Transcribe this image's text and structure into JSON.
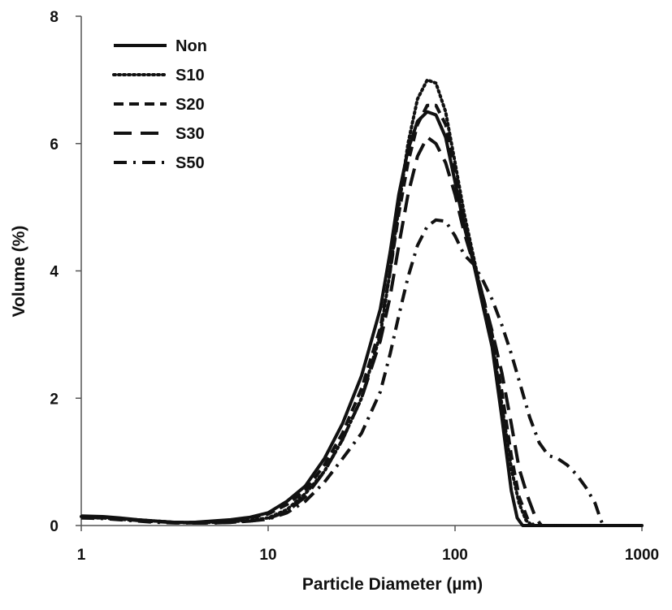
{
  "chart_data": {
    "type": "line",
    "xlabel": "Particle Diameter (µm)",
    "ylabel": "Volume (%)",
    "xscale": "log",
    "xlim": [
      1,
      1000
    ],
    "ylim": [
      0,
      8
    ],
    "x_ticks": [
      1,
      10,
      100,
      1000
    ],
    "x_tick_labels": [
      "1",
      "10",
      "100",
      "1000"
    ],
    "y_ticks": [
      0,
      2,
      4,
      6,
      8
    ],
    "y_tick_labels": [
      "0",
      "2",
      "4",
      "6",
      "8"
    ],
    "grid": false,
    "legend_position": "top-left",
    "series": [
      {
        "name": "Non",
        "style": "solid",
        "points": [
          [
            1,
            0.15
          ],
          [
            1.3,
            0.14
          ],
          [
            1.6,
            0.12
          ],
          [
            2,
            0.09
          ],
          [
            2.5,
            0.07
          ],
          [
            3.2,
            0.05
          ],
          [
            4,
            0.05
          ],
          [
            5,
            0.07
          ],
          [
            6.3,
            0.09
          ],
          [
            8,
            0.13
          ],
          [
            10,
            0.2
          ],
          [
            12.6,
            0.38
          ],
          [
            15.8,
            0.62
          ],
          [
            20,
            1.05
          ],
          [
            25,
            1.6
          ],
          [
            31.6,
            2.35
          ],
          [
            39.8,
            3.4
          ],
          [
            45,
            4.3
          ],
          [
            50,
            5.2
          ],
          [
            56,
            5.9
          ],
          [
            63,
            6.35
          ],
          [
            71,
            6.5
          ],
          [
            79,
            6.45
          ],
          [
            89,
            6.1
          ],
          [
            100,
            5.4
          ],
          [
            112,
            4.7
          ],
          [
            126,
            4.1
          ],
          [
            141,
            3.45
          ],
          [
            158,
            2.8
          ],
          [
            178,
            1.7
          ],
          [
            200,
            0.55
          ],
          [
            215,
            0.12
          ],
          [
            230,
            0.0
          ],
          [
            1000,
            0.0
          ]
        ]
      },
      {
        "name": "S10",
        "style": "dotted",
        "points": [
          [
            1,
            0.14
          ],
          [
            1.3,
            0.13
          ],
          [
            1.6,
            0.11
          ],
          [
            2,
            0.09
          ],
          [
            2.5,
            0.07
          ],
          [
            3.2,
            0.05
          ],
          [
            4,
            0.04
          ],
          [
            5,
            0.05
          ],
          [
            6.3,
            0.06
          ],
          [
            8,
            0.08
          ],
          [
            10,
            0.12
          ],
          [
            12.6,
            0.25
          ],
          [
            15.8,
            0.5
          ],
          [
            20,
            0.85
          ],
          [
            25,
            1.35
          ],
          [
            31.6,
            2.0
          ],
          [
            39.8,
            3.0
          ],
          [
            45,
            4.0
          ],
          [
            50,
            5.0
          ],
          [
            56,
            6.0
          ],
          [
            63,
            6.7
          ],
          [
            71,
            7.0
          ],
          [
            79,
            6.95
          ],
          [
            89,
            6.5
          ],
          [
            100,
            5.7
          ],
          [
            112,
            4.9
          ],
          [
            126,
            4.2
          ],
          [
            141,
            3.55
          ],
          [
            158,
            2.9
          ],
          [
            178,
            1.9
          ],
          [
            200,
            0.9
          ],
          [
            220,
            0.35
          ],
          [
            240,
            0.08
          ],
          [
            260,
            0.0
          ],
          [
            1000,
            0.0
          ]
        ]
      },
      {
        "name": "S20",
        "style": "short-dash",
        "points": [
          [
            1,
            0.12
          ],
          [
            1.3,
            0.12
          ],
          [
            1.6,
            0.1
          ],
          [
            2,
            0.08
          ],
          [
            2.5,
            0.06
          ],
          [
            3.2,
            0.05
          ],
          [
            4,
            0.05
          ],
          [
            5,
            0.06
          ],
          [
            6.3,
            0.08
          ],
          [
            8,
            0.12
          ],
          [
            10,
            0.18
          ],
          [
            12.6,
            0.33
          ],
          [
            15.8,
            0.55
          ],
          [
            20,
            0.95
          ],
          [
            25,
            1.45
          ],
          [
            31.6,
            2.15
          ],
          [
            39.8,
            3.1
          ],
          [
            45,
            4.0
          ],
          [
            50,
            4.9
          ],
          [
            56,
            5.7
          ],
          [
            63,
            6.3
          ],
          [
            71,
            6.6
          ],
          [
            79,
            6.6
          ],
          [
            89,
            6.3
          ],
          [
            100,
            5.6
          ],
          [
            112,
            4.8
          ],
          [
            126,
            4.15
          ],
          [
            141,
            3.6
          ],
          [
            158,
            3.0
          ],
          [
            178,
            2.1
          ],
          [
            200,
            1.1
          ],
          [
            220,
            0.45
          ],
          [
            245,
            0.1
          ],
          [
            265,
            0.0
          ],
          [
            1000,
            0.0
          ]
        ]
      },
      {
        "name": "S30",
        "style": "long-dash",
        "points": [
          [
            1,
            0.13
          ],
          [
            1.3,
            0.12
          ],
          [
            1.6,
            0.1
          ],
          [
            2,
            0.08
          ],
          [
            2.5,
            0.06
          ],
          [
            3.2,
            0.05
          ],
          [
            4,
            0.04
          ],
          [
            5,
            0.04
          ],
          [
            6.3,
            0.05
          ],
          [
            8,
            0.07
          ],
          [
            10,
            0.11
          ],
          [
            12.6,
            0.22
          ],
          [
            15.8,
            0.45
          ],
          [
            20,
            0.85
          ],
          [
            25,
            1.35
          ],
          [
            31.6,
            2.0
          ],
          [
            39.8,
            2.9
          ],
          [
            45,
            3.6
          ],
          [
            50,
            4.4
          ],
          [
            56,
            5.2
          ],
          [
            63,
            5.8
          ],
          [
            71,
            6.1
          ],
          [
            79,
            6.0
          ],
          [
            89,
            5.7
          ],
          [
            100,
            5.2
          ],
          [
            112,
            4.6
          ],
          [
            126,
            4.1
          ],
          [
            141,
            3.6
          ],
          [
            158,
            3.05
          ],
          [
            178,
            2.4
          ],
          [
            200,
            1.6
          ],
          [
            220,
            0.9
          ],
          [
            245,
            0.45
          ],
          [
            270,
            0.12
          ],
          [
            290,
            0.0
          ],
          [
            1000,
            0.0
          ]
        ]
      },
      {
        "name": "S50",
        "style": "dash-dot",
        "points": [
          [
            1,
            0.12
          ],
          [
            1.3,
            0.11
          ],
          [
            1.6,
            0.09
          ],
          [
            2,
            0.07
          ],
          [
            2.5,
            0.05
          ],
          [
            3.2,
            0.04
          ],
          [
            4,
            0.04
          ],
          [
            5,
            0.04
          ],
          [
            6.3,
            0.05
          ],
          [
            8,
            0.07
          ],
          [
            10,
            0.1
          ],
          [
            12.6,
            0.2
          ],
          [
            15.8,
            0.38
          ],
          [
            20,
            0.68
          ],
          [
            25,
            1.05
          ],
          [
            31.6,
            1.45
          ],
          [
            39.8,
            2.1
          ],
          [
            45,
            2.7
          ],
          [
            50,
            3.3
          ],
          [
            56,
            3.9
          ],
          [
            63,
            4.4
          ],
          [
            71,
            4.7
          ],
          [
            79,
            4.8
          ],
          [
            89,
            4.78
          ],
          [
            100,
            4.55
          ],
          [
            112,
            4.25
          ],
          [
            126,
            4.1
          ],
          [
            141,
            3.85
          ],
          [
            158,
            3.55
          ],
          [
            178,
            3.15
          ],
          [
            200,
            2.7
          ],
          [
            224,
            2.2
          ],
          [
            251,
            1.7
          ],
          [
            282,
            1.3
          ],
          [
            316,
            1.1
          ],
          [
            355,
            1.05
          ],
          [
            398,
            0.95
          ],
          [
            447,
            0.8
          ],
          [
            501,
            0.6
          ],
          [
            562,
            0.35
          ],
          [
            600,
            0.1
          ],
          [
            620,
            0.0
          ],
          [
            1000,
            0.0
          ]
        ]
      }
    ]
  }
}
